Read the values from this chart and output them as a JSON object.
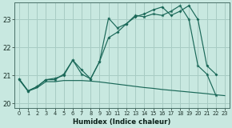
{
  "xlabel": "Humidex (Indice chaleur)",
  "bg_color": "#c8e8e0",
  "grid_color": "#a8ccc4",
  "line_color": "#1a6858",
  "xlim": [
    -0.5,
    23.5
  ],
  "ylim": [
    19.85,
    23.6
  ],
  "yticks": [
    20,
    21,
    22,
    23
  ],
  "xticks": [
    0,
    1,
    2,
    3,
    4,
    5,
    6,
    7,
    8,
    9,
    10,
    11,
    12,
    13,
    14,
    15,
    16,
    17,
    18,
    19,
    20,
    21,
    22,
    23
  ],
  "line1_x": [
    0,
    1,
    2,
    3,
    4,
    5,
    6,
    7,
    8,
    9,
    10,
    11,
    12,
    13,
    14,
    15,
    16,
    17,
    18,
    19,
    20,
    21,
    22
  ],
  "line1_y": [
    20.88,
    20.45,
    20.6,
    20.85,
    20.85,
    21.05,
    21.55,
    21.05,
    20.88,
    21.5,
    23.05,
    22.7,
    22.85,
    23.15,
    23.1,
    23.2,
    23.15,
    23.3,
    23.5,
    23.0,
    21.35,
    21.05,
    20.3
  ],
  "line2_x": [
    0,
    1,
    2,
    3,
    4,
    5,
    6,
    7,
    8,
    9,
    10,
    11,
    12,
    13,
    14,
    15,
    16,
    17,
    18,
    19,
    20,
    21,
    22
  ],
  "line2_y": [
    20.88,
    20.45,
    20.6,
    20.85,
    20.9,
    21.0,
    21.55,
    21.2,
    20.88,
    21.5,
    22.35,
    22.55,
    22.85,
    23.1,
    23.2,
    23.35,
    23.45,
    23.15,
    23.3,
    23.5,
    23.0,
    21.35,
    21.05
  ],
  "line3_x": [
    0,
    1,
    2,
    3,
    4,
    5,
    6,
    7,
    8,
    9,
    10,
    11,
    12,
    13,
    14,
    15,
    16,
    17,
    18,
    19,
    20,
    21,
    22,
    23
  ],
  "line3_y": [
    20.85,
    20.44,
    20.56,
    20.78,
    20.78,
    20.82,
    20.82,
    20.82,
    20.8,
    20.77,
    20.73,
    20.69,
    20.65,
    20.61,
    20.57,
    20.54,
    20.5,
    20.47,
    20.44,
    20.41,
    20.38,
    20.35,
    20.31,
    20.28
  ]
}
